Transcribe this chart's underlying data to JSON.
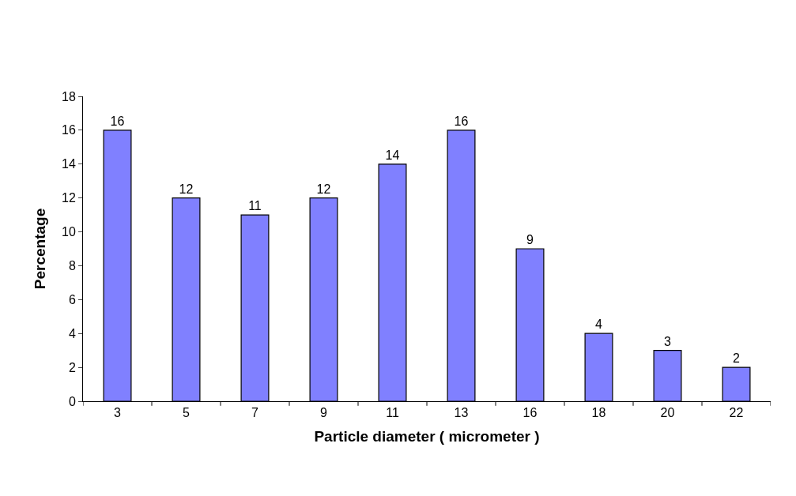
{
  "chart_data": {
    "type": "bar",
    "xlabel": "Particle diameter ( micrometer )",
    "ylabel": "Percentage",
    "categories": [
      "3",
      "5",
      "7",
      "9",
      "11",
      "13",
      "16",
      "18",
      "20",
      "22"
    ],
    "values": [
      16,
      12,
      11,
      12,
      14,
      16,
      9,
      4,
      3,
      2
    ],
    "color": "#8080ff",
    "ylim": [
      0,
      18
    ],
    "yticks": [
      0,
      2,
      4,
      6,
      8,
      10,
      12,
      14,
      16,
      18
    ],
    "data_labels": true
  }
}
